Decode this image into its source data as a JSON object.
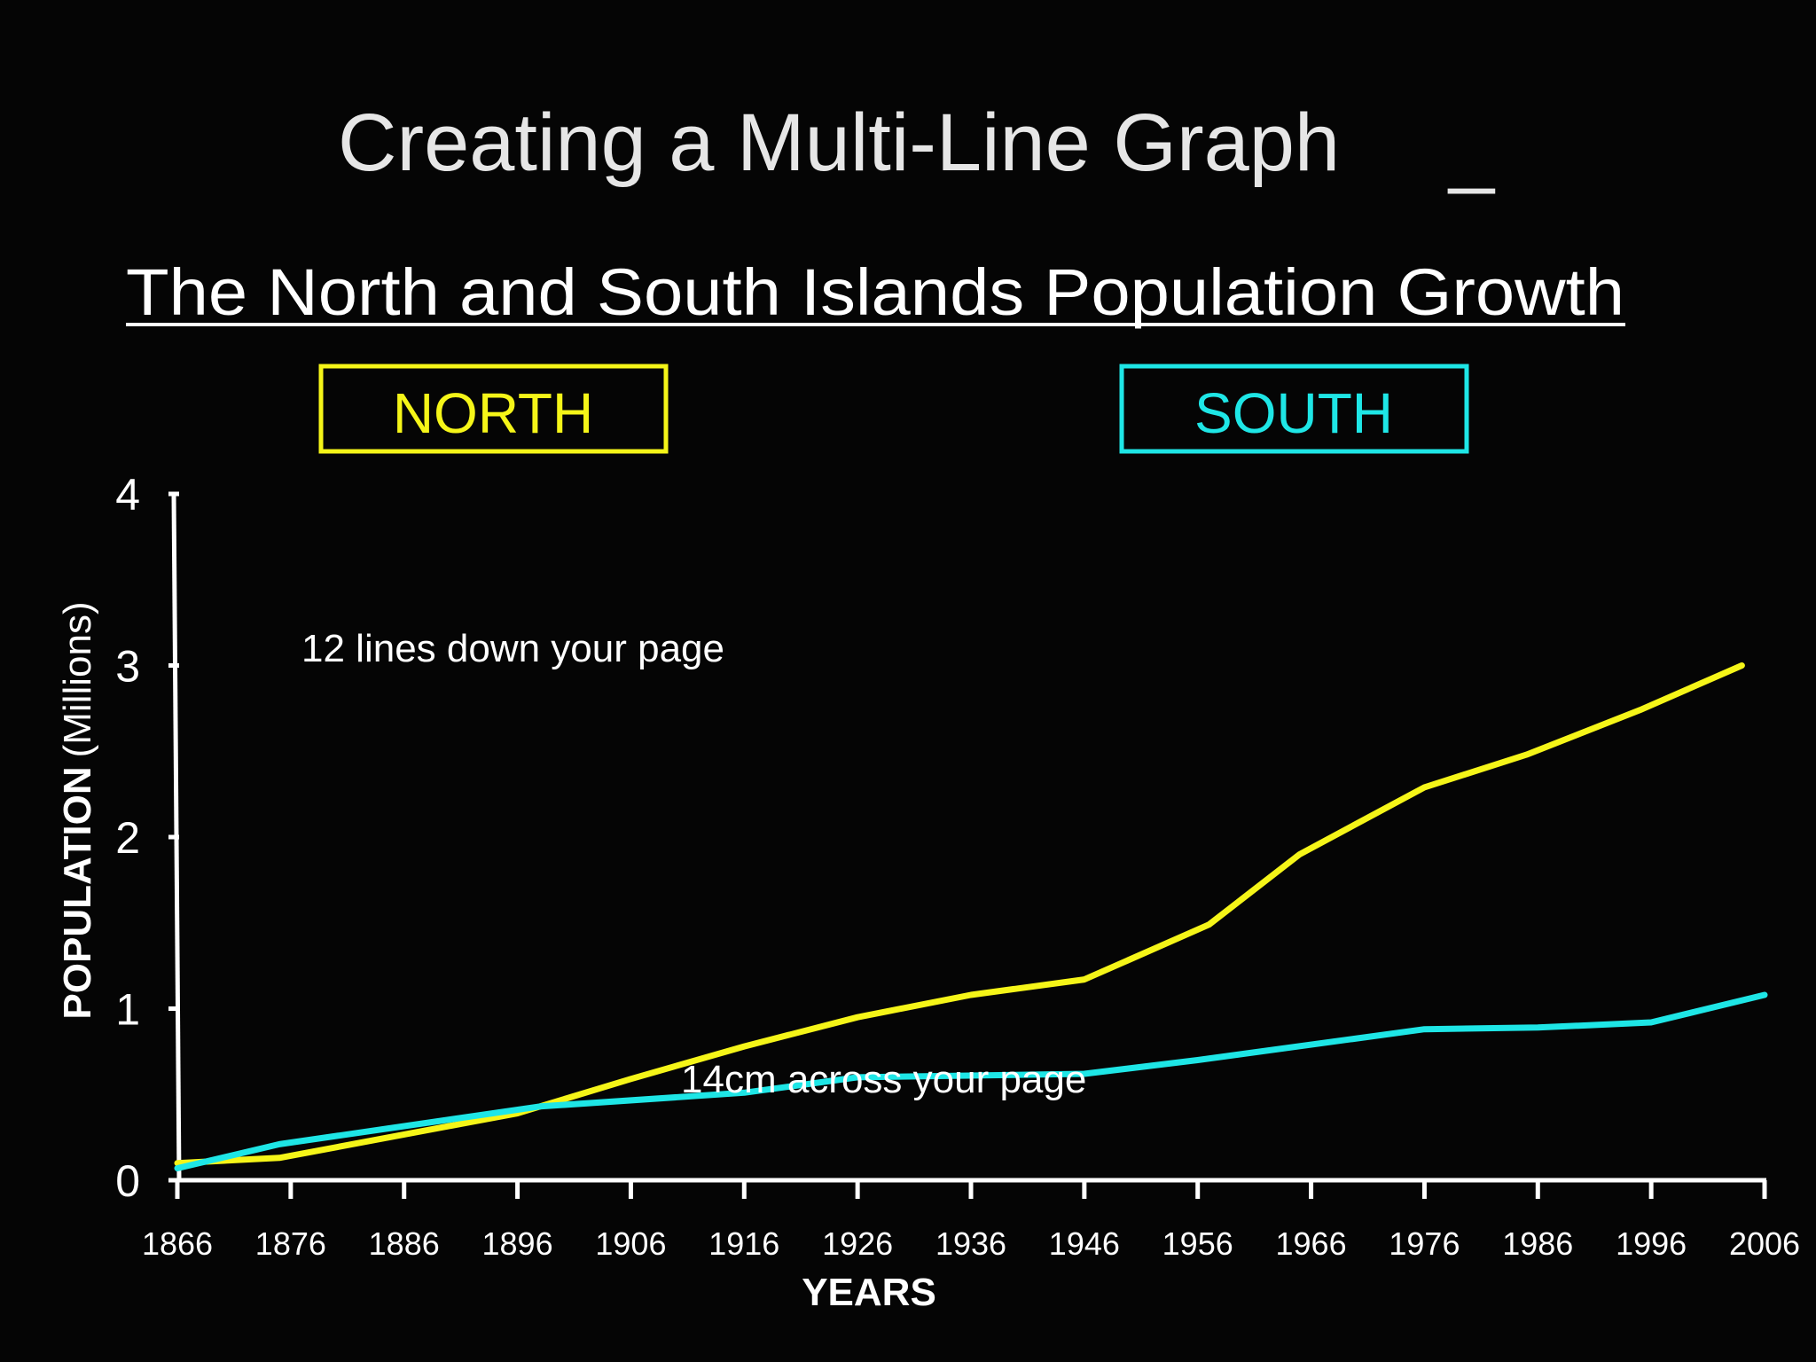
{
  "slide": {
    "title": "Creating a Multi-Line Graph",
    "title_cursor": "_"
  },
  "notes": {
    "rows": "12 lines down your page",
    "width": "14cm across your page"
  },
  "colors": {
    "background": "#050505",
    "north": "#f5f518",
    "south": "#1ee6e6",
    "axis": "#ffffff"
  },
  "chart_data": {
    "type": "line",
    "title": "The North and South Islands Population Growth",
    "xlabel": "YEARS",
    "ylabel": "POPULATION",
    "ylabel_unit": "(Millions)",
    "categories": [
      "1866",
      "1876",
      "1886",
      "1896",
      "1906",
      "1916",
      "1926",
      "1936",
      "1946",
      "1956",
      "1966",
      "1976",
      "1986",
      "1996",
      "2006"
    ],
    "yticks": [
      "0",
      "1",
      "2",
      "3",
      "4"
    ],
    "ylim": [
      0,
      4
    ],
    "legend_position": "top",
    "series": [
      {
        "name": "NORTH",
        "color": "#f5f518",
        "points": [
          {
            "x": 1866,
            "y": 0.1
          },
          {
            "x": 1875,
            "y": 0.13
          },
          {
            "x": 1896,
            "y": 0.39
          },
          {
            "x": 1906,
            "y": 0.59
          },
          {
            "x": 1916,
            "y": 0.78
          },
          {
            "x": 1926,
            "y": 0.95
          },
          {
            "x": 1936,
            "y": 1.08
          },
          {
            "x": 1946,
            "y": 1.17
          },
          {
            "x": 1957,
            "y": 1.49
          },
          {
            "x": 1965,
            "y": 1.9
          },
          {
            "x": 1976,
            "y": 2.29
          },
          {
            "x": 1985,
            "y": 2.48
          },
          {
            "x": 1995,
            "y": 2.74
          },
          {
            "x": 2004,
            "y": 3.0
          }
        ]
      },
      {
        "name": "SOUTH",
        "color": "#1ee6e6",
        "points": [
          {
            "x": 1866,
            "y": 0.07
          },
          {
            "x": 1875,
            "y": 0.21
          },
          {
            "x": 1898,
            "y": 0.43
          },
          {
            "x": 1916,
            "y": 0.51
          },
          {
            "x": 1926,
            "y": 0.6
          },
          {
            "x": 1946,
            "y": 0.62
          },
          {
            "x": 1956,
            "y": 0.7
          },
          {
            "x": 1976,
            "y": 0.88
          },
          {
            "x": 1986,
            "y": 0.89
          },
          {
            "x": 1996,
            "y": 0.92
          },
          {
            "x": 2006,
            "y": 1.08
          }
        ]
      }
    ]
  }
}
